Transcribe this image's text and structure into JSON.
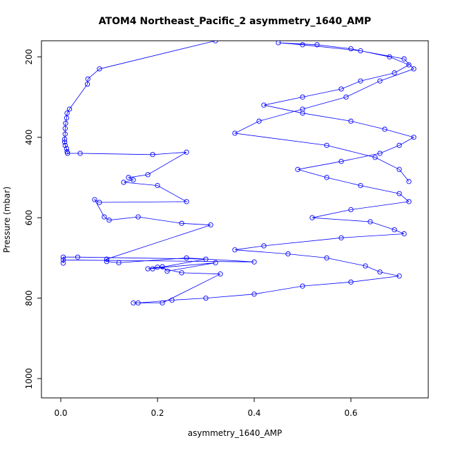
{
  "chart_data": {
    "type": "scatter",
    "title": "ATOM4 Northeast_Pacific_2 asymmetry_1640_AMP",
    "xlabel": "asymmetry_1640_AMP",
    "ylabel": "Pressure (mbar)",
    "xlim": [
      -0.04,
      0.76
    ],
    "ylim": [
      1048,
      160
    ],
    "y_reversed": true,
    "x_ticks": [
      0.0,
      0.2,
      0.4,
      0.6
    ],
    "x_tick_labels": [
      "0.0",
      "0.2",
      "0.4",
      "0.6"
    ],
    "y_ticks": [
      200,
      400,
      600,
      800,
      1000
    ],
    "y_tick_labels": [
      "200",
      "400",
      "600",
      "800",
      "1000"
    ],
    "marker": "open-circle",
    "connected": true,
    "color": "#0000ff",
    "grid": false,
    "series": [
      {
        "x": [
          0.32,
          0.08,
          0.056,
          0.055,
          0.018,
          0.013,
          0.012,
          0.01,
          0.009,
          0.009,
          0.008,
          0.008,
          0.009,
          0.012,
          0.013,
          0.014,
          0.04,
          0.19,
          0.26,
          0.18,
          0.14,
          0.15,
          0.13,
          0.2,
          0.26,
          0.08,
          0.07,
          0.09,
          0.1,
          0.16,
          0.25,
          0.31,
          0.095,
          0.095,
          0.12,
          0.26,
          0.4,
          0.005,
          0.005,
          0.005,
          0.035,
          0.3,
          0.19,
          0.21,
          0.22,
          0.32,
          0.18,
          0.2,
          0.25,
          0.33,
          0.21,
          0.15,
          0.16,
          0.23,
          0.3,
          0.4,
          0.5,
          0.6,
          0.7,
          0.66,
          0.63,
          0.55,
          0.47,
          0.36,
          0.42,
          0.58,
          0.71,
          0.69,
          0.64,
          0.52,
          0.6,
          0.72,
          0.7,
          0.62,
          0.55,
          0.49,
          0.58,
          0.66,
          0.7,
          0.73,
          0.67,
          0.6,
          0.5,
          0.42,
          0.5,
          0.58,
          0.62,
          0.69,
          0.72,
          0.68,
          0.6,
          0.53,
          0.45,
          0.5,
          0.62,
          0.71,
          0.73,
          0.66,
          0.59,
          0.5,
          0.41,
          0.36,
          0.55,
          0.65,
          0.7,
          0.72
        ],
        "y": [
          160,
          230,
          255,
          268,
          330,
          340,
          352,
          365,
          378,
          392,
          405,
          412,
          420,
          428,
          436,
          440,
          440,
          443,
          437,
          493,
          500,
          506,
          512,
          520,
          560,
          562,
          555,
          598,
          606,
          598,
          614,
          618,
          703,
          709,
          712,
          700,
          710,
          705,
          713,
          698,
          698,
          703,
          727,
          722,
          733,
          712,
          727,
          723,
          737,
          740,
          812,
          812,
          812,
          805,
          800,
          790,
          770,
          760,
          745,
          735,
          720,
          700,
          690,
          680,
          670,
          650,
          640,
          630,
          610,
          600,
          580,
          560,
          540,
          520,
          500,
          480,
          460,
          440,
          420,
          400,
          380,
          360,
          340,
          320,
          300,
          280,
          260,
          240,
          220,
          200,
          180,
          170,
          165,
          170,
          185,
          205,
          230,
          260,
          300,
          330,
          360,
          390,
          420,
          450,
          480,
          510
        ]
      }
    ]
  }
}
